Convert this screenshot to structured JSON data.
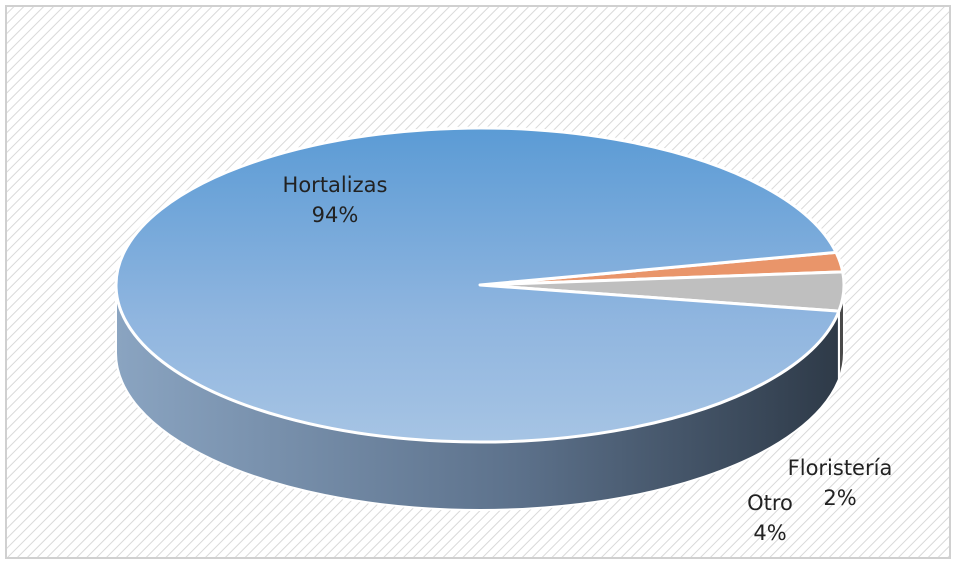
{
  "chart_data": {
    "type": "pie",
    "style": "3d",
    "categories": [
      "Hortalizas",
      "Floristería",
      "Otro"
    ],
    "values": [
      94,
      2,
      4
    ],
    "labels": [
      {
        "name": "Hortalizas",
        "value_text": "94%"
      },
      {
        "name": "Floristería",
        "value_text": "2%"
      },
      {
        "name": "Otro",
        "value_text": "4%"
      }
    ],
    "colors": {
      "Hortalizas": "#7ba7d6",
      "Floristería": "#e9956a",
      "Otro": "#bfbfbf"
    },
    "side_colors": {
      "Hortalizas": "#55687f",
      "Floristería": "#6b3e22",
      "Otro": "#4a4a4a"
    },
    "background": "hatched"
  }
}
